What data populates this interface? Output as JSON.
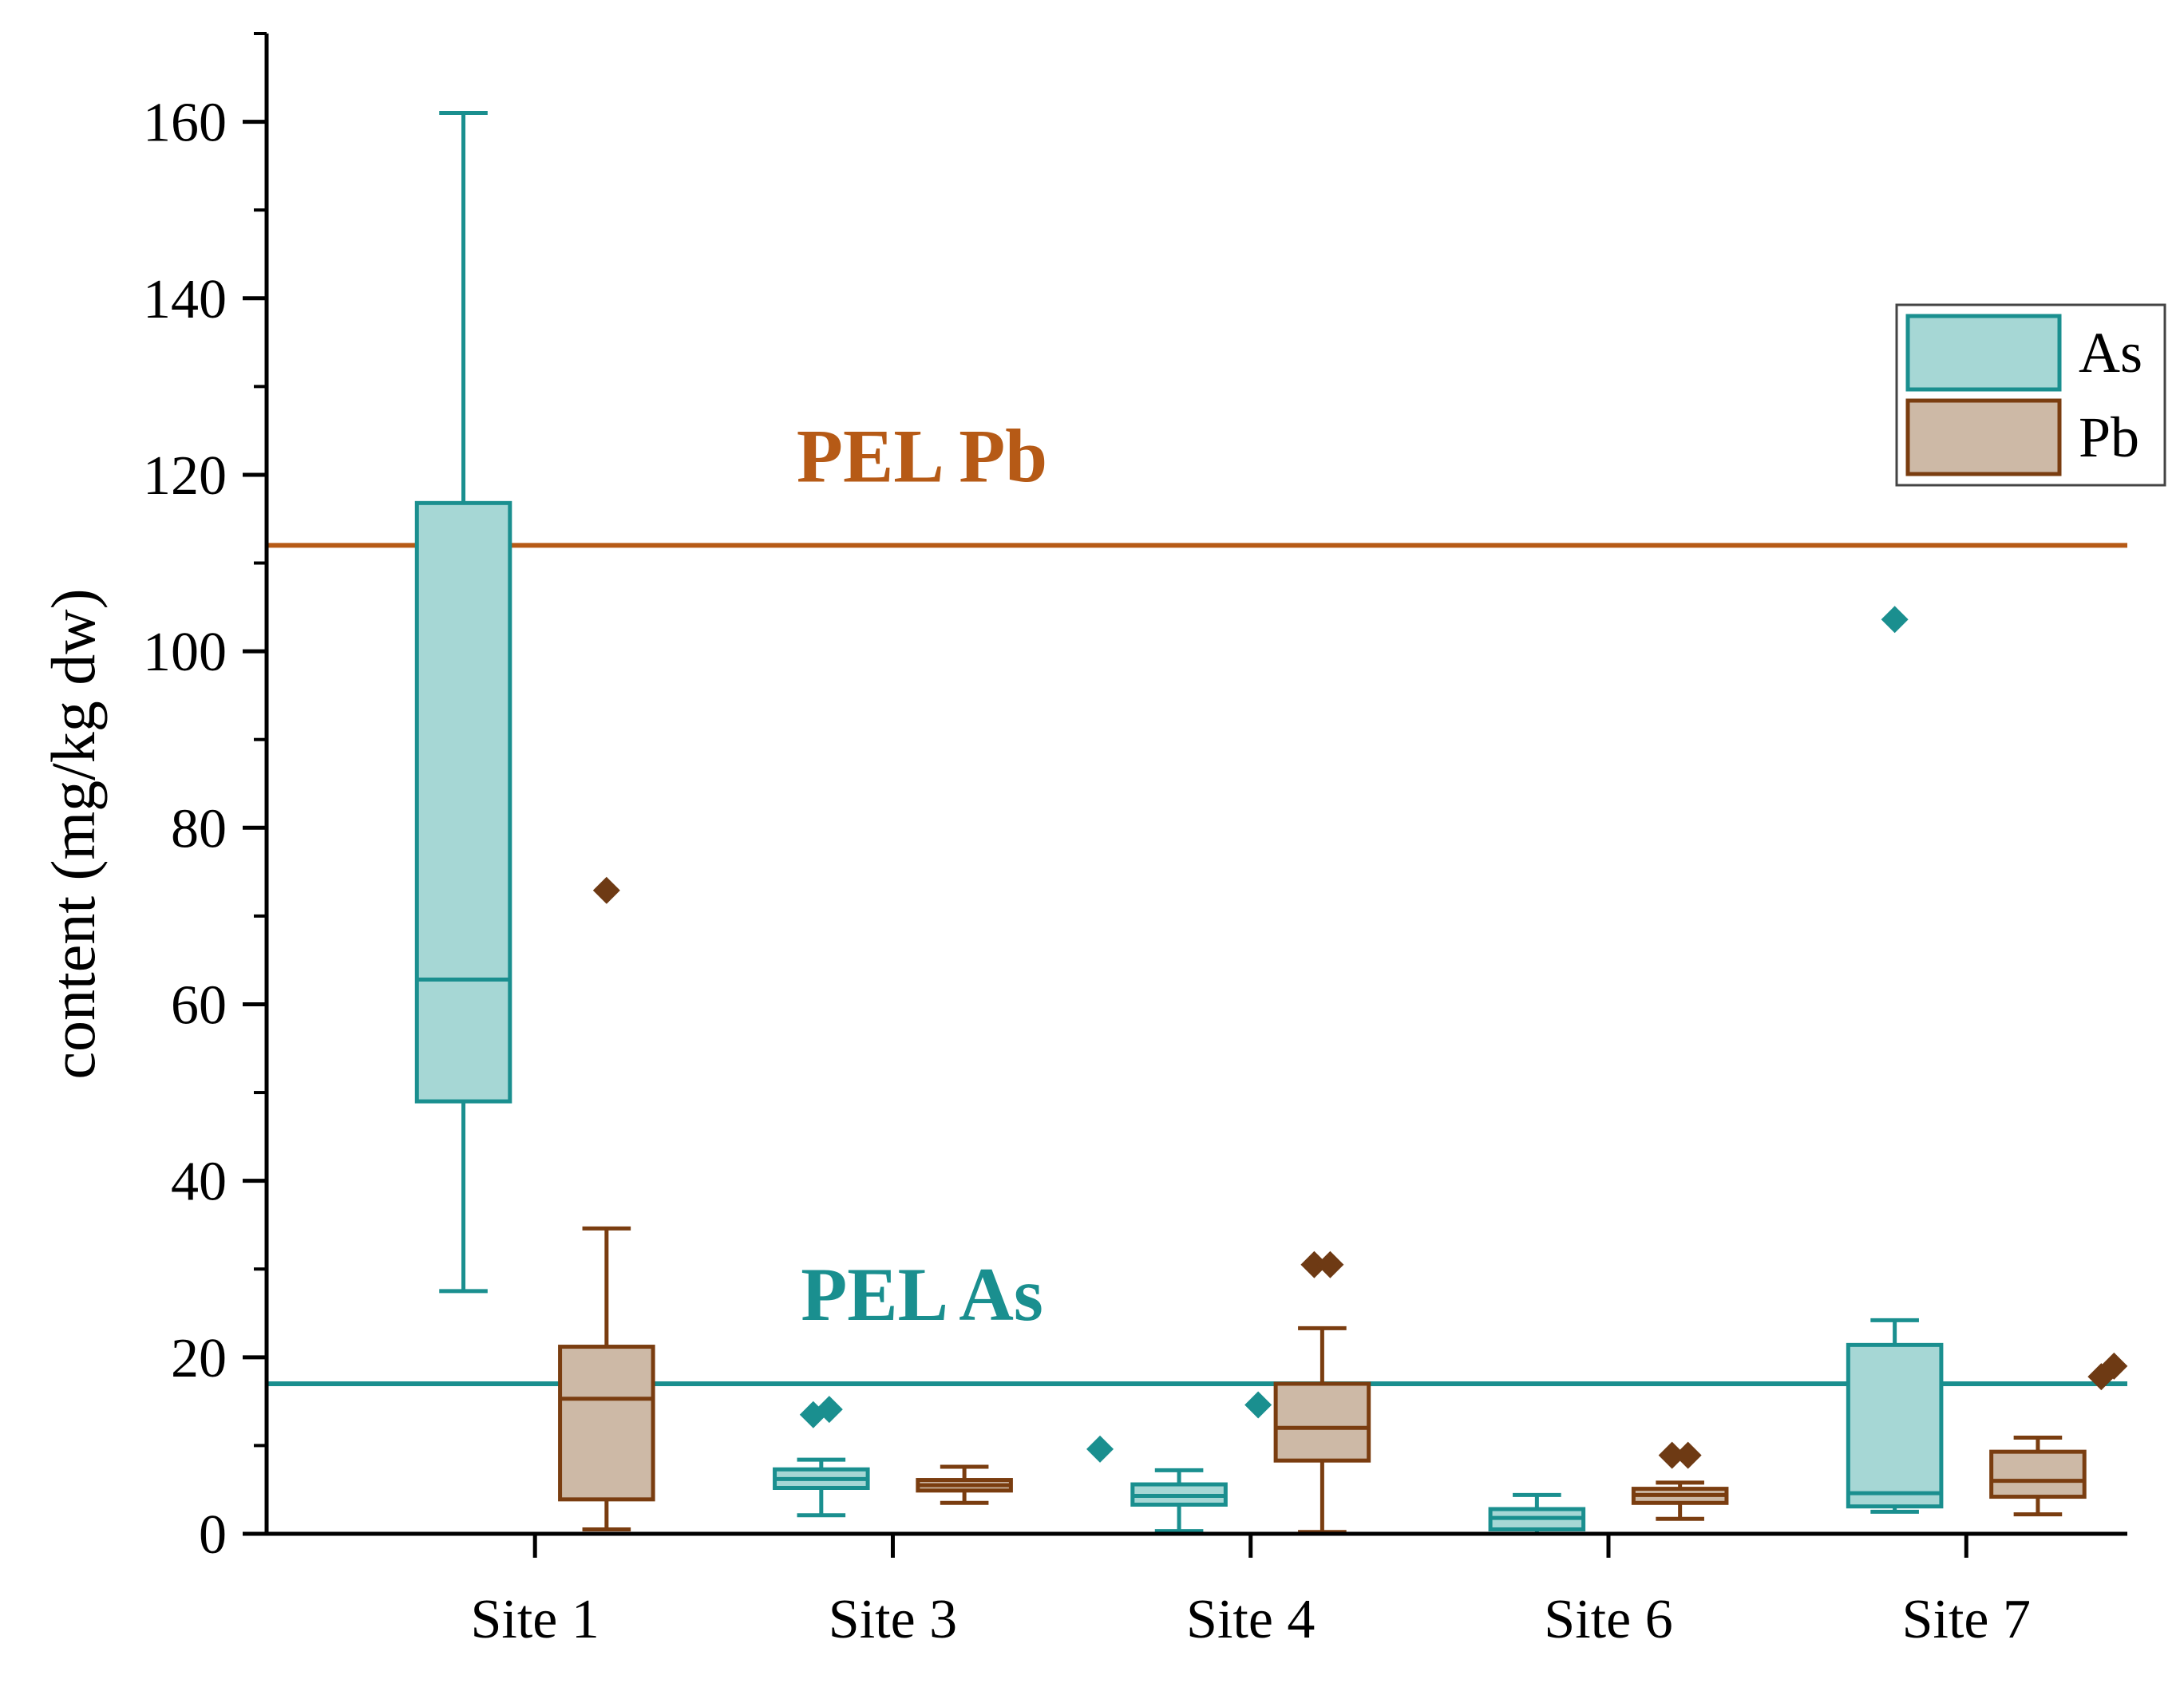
{
  "chart_data": {
    "type": "box",
    "title": "",
    "xlabel": "",
    "ylabel": "content (mg/kg dw)",
    "ylim": [
      0,
      170
    ],
    "yticks": [
      0,
      20,
      40,
      60,
      80,
      100,
      120,
      140,
      160
    ],
    "y_minor_step": 10,
    "categories": [
      "Site 1",
      "Site 3",
      "Site 4",
      "Site 6",
      "Site 7"
    ],
    "legend": {
      "position": "top-right",
      "entries": [
        "As",
        "Pb"
      ]
    },
    "colors": {
      "As": {
        "stroke": "#1A8F8F",
        "fill": "#A6D7D5",
        "marker": "#1A8F8F"
      },
      "Pb": {
        "stroke": "#7A3D10",
        "fill": "#CDB9A6",
        "marker": "#6E3A14"
      },
      "pel_pb": "#B65A16",
      "pel_as": "#1A8F8F"
    },
    "series": [
      {
        "name": "As",
        "boxes": [
          {
            "category": "Site 1",
            "min": 27.5,
            "q1": 49,
            "median": 62.8,
            "q3": 116.8,
            "max": 161,
            "outliers": []
          },
          {
            "category": "Site 3",
            "min": 2.1,
            "q1": 5.2,
            "median": 6.2,
            "q3": 7.3,
            "max": 8.4,
            "outliers": [
              13.5,
              14.1
            ]
          },
          {
            "category": "Site 4",
            "min": 0.3,
            "q1": 3.3,
            "median": 4.3,
            "q3": 5.6,
            "max": 7.2,
            "outliers": [
              9.6,
              14.6
            ]
          },
          {
            "category": "Site 6",
            "min": 0,
            "q1": 0.5,
            "median": 1.8,
            "q3": 2.8,
            "max": 4.4,
            "outliers": []
          },
          {
            "category": "Site 7",
            "min": 2.5,
            "q1": 3.1,
            "median": 4.6,
            "q3": 21.4,
            "max": 24.2,
            "outliers": [
              103.6
            ]
          }
        ]
      },
      {
        "name": "Pb",
        "boxes": [
          {
            "category": "Site 1",
            "min": 0.5,
            "q1": 3.9,
            "median": 15.3,
            "q3": 21.2,
            "max": 34.6,
            "outliers": [
              72.9
            ]
          },
          {
            "category": "Site 3",
            "min": 3.5,
            "q1": 4.9,
            "median": 5.5,
            "q3": 6.1,
            "max": 7.6,
            "outliers": []
          },
          {
            "category": "Site 4",
            "min": 0.2,
            "q1": 8.3,
            "median": 12,
            "q3": 17,
            "max": 23.3,
            "outliers": [
              30.5,
              30.5
            ]
          },
          {
            "category": "Site 6",
            "min": 1.7,
            "q1": 3.5,
            "median": 4.4,
            "q3": 5.1,
            "max": 5.8,
            "outliers": [
              8.9,
              8.9
            ]
          },
          {
            "category": "Site 7",
            "min": 2.2,
            "q1": 4.2,
            "median": 6,
            "q3": 9.3,
            "max": 10.9,
            "outliers": [
              17.8,
              19
            ]
          }
        ]
      }
    ],
    "reference_lines": [
      {
        "name": "PEL Pb",
        "label": "PEL Pb",
        "value": 112
      },
      {
        "name": "PEL As",
        "label": "PEL As",
        "value": 17
      }
    ]
  }
}
